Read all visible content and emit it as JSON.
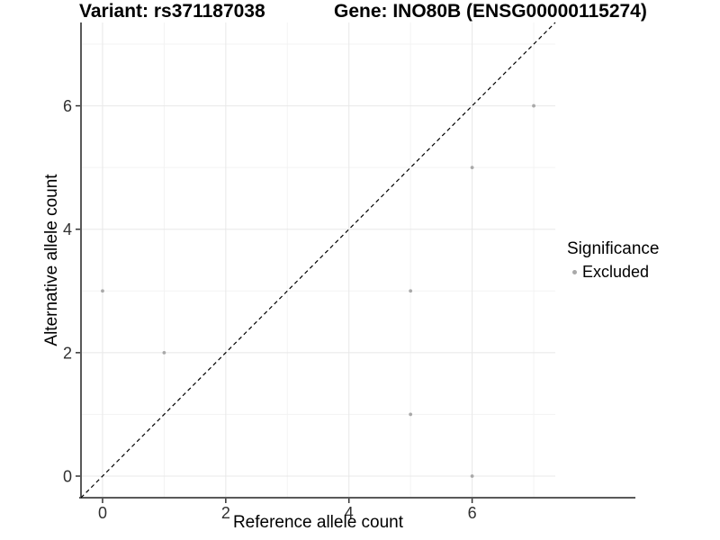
{
  "chart_data": {
    "type": "scatter",
    "titles": {
      "left": "Variant: rs371187038",
      "right": "Gene: INO80B (ENSG00000115274)"
    },
    "xlabel": "Reference allele count",
    "ylabel": "Alternative allele count",
    "xlim": [
      -0.35,
      7.35
    ],
    "ylim": [
      -0.35,
      7.35
    ],
    "x_ticks": [
      0,
      2,
      4,
      6
    ],
    "y_ticks": [
      0,
      2,
      4,
      6
    ],
    "x_tick_labels": [
      "0",
      "2",
      "4",
      "6"
    ],
    "y_tick_labels": [
      "0",
      "2",
      "4",
      "6"
    ],
    "x_minor_breaks": [
      1,
      3,
      5,
      7
    ],
    "y_minor_breaks": [
      1,
      3,
      5,
      7
    ],
    "grid": "major+minor",
    "series": [
      {
        "name": "Excluded",
        "color": "#a9a9a9",
        "marker": "circle",
        "points": [
          [
            0,
            3
          ],
          [
            1,
            2
          ],
          [
            5,
            1
          ],
          [
            5,
            3
          ],
          [
            6,
            0
          ],
          [
            6,
            5
          ],
          [
            7,
            6
          ]
        ]
      }
    ],
    "reference_line": {
      "kind": "identity",
      "equation": "y = x",
      "style": "dashed",
      "color": "#000000"
    },
    "legend": {
      "title": "Significance",
      "position": "right",
      "entries": [
        {
          "label": "Excluded",
          "color": "#a9a9a9"
        }
      ]
    },
    "colors": {
      "axis_line": "#595959",
      "tick": "#333333",
      "tick_label": "#303030",
      "grid_major": "#e8e8e8",
      "grid_minor": "#f3f3f3",
      "background": "#ffffff"
    }
  }
}
